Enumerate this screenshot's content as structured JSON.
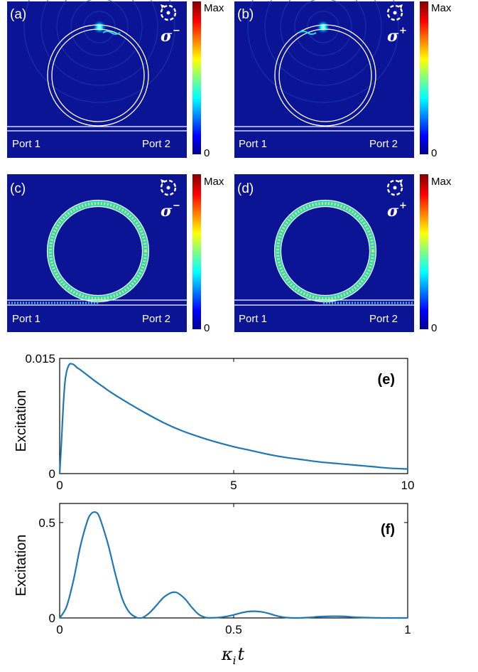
{
  "panels": [
    {
      "id": "a",
      "label": "(a)",
      "sigma": "σ",
      "sup": "−",
      "port_left": "Port 1",
      "port_right": "Port 2",
      "cb_max": "Max",
      "cb_min": "0",
      "state": "excitation-localized-top",
      "rotation": "counterclockwise"
    },
    {
      "id": "b",
      "label": "(b)",
      "sigma": "σ",
      "sup": "+",
      "port_left": "Port 1",
      "port_right": "Port 2",
      "cb_max": "Max",
      "cb_min": "0",
      "state": "excitation-localized-top",
      "rotation": "clockwise"
    },
    {
      "id": "c",
      "label": "(c)",
      "sigma": "σ",
      "sup": "−",
      "port_left": "Port 1",
      "port_right": "Port 2",
      "cb_max": "Max",
      "cb_min": "0",
      "state": "ring-mode-filled",
      "rotation": "counterclockwise"
    },
    {
      "id": "d",
      "label": "(d)",
      "sigma": "σ",
      "sup": "+",
      "port_left": "Port 1",
      "port_right": "Port 2",
      "cb_max": "Max",
      "cb_min": "0",
      "state": "ring-mode-filled",
      "rotation": "clockwise"
    }
  ],
  "colors": {
    "field_bg": "#0a1494",
    "curve": "#1f77b4"
  },
  "chart_data": [
    {
      "type": "line",
      "tag": "(e)",
      "xlabel": "",
      "ylabel": "Excitation",
      "xlim": [
        0,
        10
      ],
      "ylim": [
        0,
        0.015
      ],
      "xticks": [
        "0",
        "5",
        "10"
      ],
      "yticks": [
        "0",
        "0.015"
      ],
      "x": [
        0,
        0.05,
        0.1,
        0.15,
        0.2,
        0.25,
        0.3,
        0.4,
        0.5,
        0.6,
        0.8,
        1,
        1.25,
        1.5,
        2,
        2.5,
        3,
        3.5,
        4,
        4.5,
        5,
        5.5,
        6,
        6.5,
        7,
        7.5,
        8,
        8.5,
        9,
        9.5,
        10
      ],
      "y": [
        0,
        0.004,
        0.0085,
        0.0118,
        0.0133,
        0.014,
        0.0143,
        0.0142,
        0.0138,
        0.0135,
        0.0128,
        0.0121,
        0.0113,
        0.0105,
        0.0091,
        0.0078,
        0.0066,
        0.0056,
        0.0048,
        0.0041,
        0.0035,
        0.003,
        0.0025,
        0.0021,
        0.0018,
        0.0015,
        0.0013,
        0.0011,
        0.0009,
        0.0007,
        0.0006
      ]
    },
    {
      "type": "line",
      "tag": "(f)",
      "xlabel": "κ",
      "xlabel_sub": "i",
      "xlabel_tail": "t",
      "ylabel": "Excitation",
      "xlim": [
        0,
        1
      ],
      "ylim": [
        0,
        0.6
      ],
      "xticks": [
        "0",
        "0.5",
        "1"
      ],
      "yticks": [
        "0",
        "0.5"
      ],
      "x": [
        0,
        0.02,
        0.04,
        0.06,
        0.08,
        0.09,
        0.1,
        0.11,
        0.12,
        0.14,
        0.16,
        0.18,
        0.2,
        0.22,
        0.23,
        0.24,
        0.26,
        0.28,
        0.3,
        0.32,
        0.33,
        0.34,
        0.36,
        0.38,
        0.4,
        0.42,
        0.44,
        0.46,
        0.48,
        0.5,
        0.52,
        0.54,
        0.56,
        0.58,
        0.6,
        0.62,
        0.64,
        0.66,
        0.68,
        0.7,
        0.72,
        0.74,
        0.76,
        0.78,
        0.8,
        0.82,
        0.84,
        0.86,
        0.9,
        0.95,
        1.0
      ],
      "y": [
        0,
        0.06,
        0.2,
        0.38,
        0.51,
        0.545,
        0.555,
        0.545,
        0.5,
        0.38,
        0.23,
        0.1,
        0.03,
        0.003,
        0,
        0.003,
        0.03,
        0.07,
        0.11,
        0.132,
        0.135,
        0.13,
        0.1,
        0.055,
        0.018,
        0.002,
        0.001,
        0.003,
        0.008,
        0.016,
        0.026,
        0.033,
        0.035,
        0.032,
        0.024,
        0.013,
        0.005,
        0.001,
        0,
        0.001,
        0.003,
        0.006,
        0.008,
        0.009,
        0.009,
        0.008,
        0.005,
        0.003,
        0.001,
        0,
        0
      ]
    }
  ]
}
